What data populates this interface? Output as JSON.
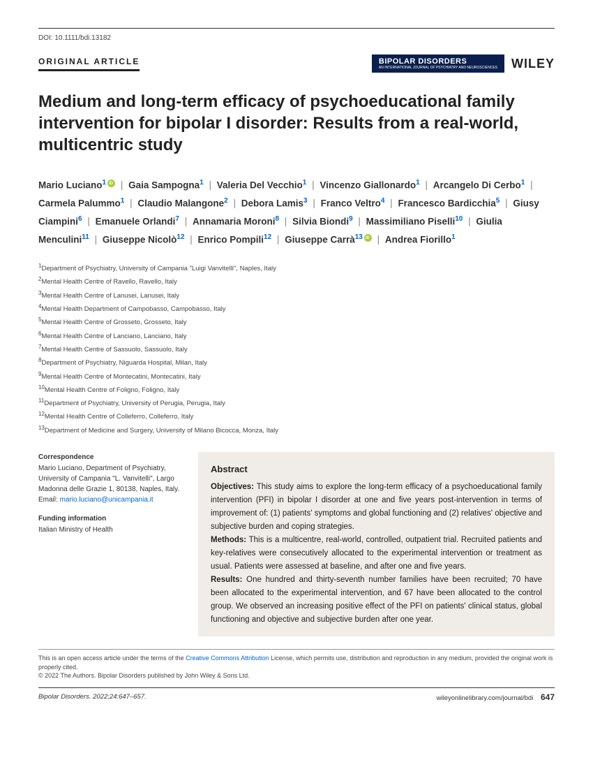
{
  "doi": "DOI: 10.1111/bdi.13182",
  "article_type": "ORIGINAL ARTICLE",
  "journal_badge": "BIPOLAR DISORDERS",
  "journal_badge_sub": "AN INTERNATIONAL JOURNAL OF PSYCHIATRY AND NEUROSCIENCES",
  "publisher": "WILEY",
  "title": "Medium and long-term efficacy of psychoeducational family intervention for bipolar I disorder: Results from a real-world, multicentric study",
  "authors": [
    {
      "name": "Mario Luciano",
      "aff": "1",
      "orcid": true
    },
    {
      "name": "Gaia Sampogna",
      "aff": "1"
    },
    {
      "name": "Valeria Del Vecchio",
      "aff": "1"
    },
    {
      "name": "Vincenzo Giallonardo",
      "aff": "1"
    },
    {
      "name": "Arcangelo Di Cerbo",
      "aff": "1"
    },
    {
      "name": "Carmela Palummo",
      "aff": "1"
    },
    {
      "name": "Claudio Malangone",
      "aff": "2"
    },
    {
      "name": "Debora Lamis",
      "aff": "3"
    },
    {
      "name": "Franco Veltro",
      "aff": "4"
    },
    {
      "name": "Francesco Bardicchia",
      "aff": "5"
    },
    {
      "name": "Giusy Ciampini",
      "aff": "6"
    },
    {
      "name": "Emanuele Orlandi",
      "aff": "7"
    },
    {
      "name": "Annamaria Moroni",
      "aff": "8"
    },
    {
      "name": "Silvia Biondi",
      "aff": "9"
    },
    {
      "name": "Massimiliano Piselli",
      "aff": "10"
    },
    {
      "name": "Giulia Menculini",
      "aff": "11"
    },
    {
      "name": "Giuseppe Nicolò",
      "aff": "12"
    },
    {
      "name": "Enrico Pompili",
      "aff": "12"
    },
    {
      "name": "Giuseppe Carrà",
      "aff": "13",
      "orcid": true
    },
    {
      "name": "Andrea Fiorillo",
      "aff": "1"
    }
  ],
  "affiliations": [
    "Department of Psychiatry, University of Campania \"Luigi Vanvitelli\", Naples, Italy",
    "Mental Health Centre of Ravello, Ravello, Italy",
    "Mental Health Centre of Lanusei, Lanusei, Italy",
    "Mental Health Department of Campobasso, Campobasso, Italy",
    "Mental Health Centre of Grosseto, Grosseto, Italy",
    "Mental Health Centre of Lanciano, Lanciano, Italy",
    "Mental Health Centre of Sassuolo, Sassuolo, Italy",
    "Department of Psychiatry, Niguarda Hospital, Milan, Italy",
    "Mental Health Centre of Montecatini, Montecatini, Italy",
    "Mental Health Centre of Foligno, Foligno, Italy",
    "Department of Psychiatry, University of Perugia, Perugia, Italy",
    "Mental Health Centre of Colleferro, Colleferro, Italy",
    "Department of Medicine and Surgery, University of Milano Bicocca, Monza, Italy"
  ],
  "correspondence": {
    "head": "Correspondence",
    "body": "Mario Luciano, Department of Psychiatry, University of Campania \"L. Vanvitelli\", Largo Madonna delle Grazie 1, 80138, Naples, Italy.",
    "email_label": "Email: ",
    "email": "mario.luciano@unicampania.it"
  },
  "funding": {
    "head": "Funding information",
    "body": "Italian Ministry of Health"
  },
  "abstract": {
    "head": "Abstract",
    "sections": [
      {
        "label": "Objectives:",
        "text": " This study aims to explore the long-term efficacy of a psychoeducational family intervention (PFI) in bipolar I disorder at one and five years post-intervention in terms of improvement of: (1) patients' symptoms and global functioning and (2) relatives' objective and subjective burden and coping strategies."
      },
      {
        "label": "Methods:",
        "text": " This is a multicentre, real-world, controlled, outpatient trial. Recruited patients and key-relatives were consecutively allocated to the experimental intervention or treatment as usual. Patients were assessed at baseline, and after one and five years."
      },
      {
        "label": "Results:",
        "text": " One hundred and thirty-seventh number families have been recruited; 70 have been allocated to the experimental intervention, and 67 have been allocated to the control group. We observed an increasing positive effect of the PFI on patients' clinical status, global functioning and objective and subjective burden after one year."
      }
    ]
  },
  "license": {
    "line1_a": "This is an open access article under the terms of the ",
    "link": "Creative Commons Attribution",
    "line1_b": " License, which permits use, distribution and reproduction in any medium, provided the original work is properly cited.",
    "line2": "© 2022 The Authors. Bipolar Disorders published by John Wiley & Sons Ltd."
  },
  "footer": {
    "citation": "Bipolar Disorders. 2022;24:647–657.",
    "url": "wileyonlinelibrary.com/journal/bdi",
    "page": "647"
  }
}
